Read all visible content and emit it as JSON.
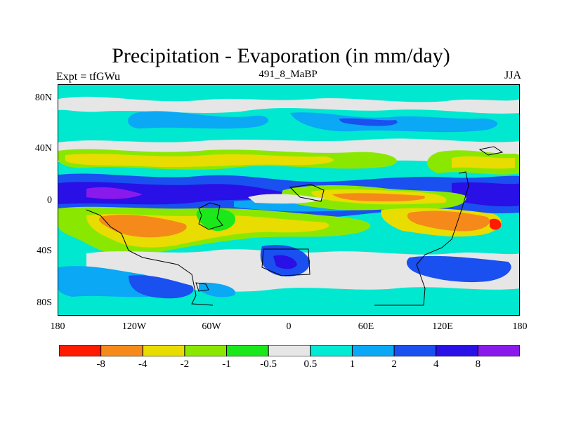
{
  "plot": {
    "title": "Precipitation - Evaporation (in mm/day)",
    "left_label": "Expt = tfGWu",
    "center_label": "491_8_MaBP",
    "right_label": "JJA"
  },
  "axes": {
    "y_ticks": [
      "80N",
      "40N",
      "0",
      "40S",
      "80S"
    ],
    "x_ticks": [
      "180",
      "120W",
      "60W",
      "0",
      "60E",
      "120E",
      "180"
    ]
  },
  "colorbar": {
    "colors": [
      "#ff1a00",
      "#f58a1a",
      "#e8dc00",
      "#8ae800",
      "#1ae81a",
      "#e6e6e6",
      "#00ead4",
      "#0aa8f5",
      "#1a4ff0",
      "#2810e6",
      "#8a1aec"
    ],
    "labels": [
      "-8",
      "-4",
      "-2",
      "-1",
      "-0.5",
      "0.5",
      "1",
      "2",
      "4",
      "8"
    ]
  },
  "chart_data": {
    "type": "heatmap",
    "title": "Precipitation - Evaporation (in mm/day)",
    "x_range": [
      -180,
      180
    ],
    "y_range": [
      -90,
      90
    ],
    "levels": [
      -8,
      -4,
      -2,
      -1,
      -0.5,
      0.5,
      1,
      2,
      4,
      8
    ]
  }
}
